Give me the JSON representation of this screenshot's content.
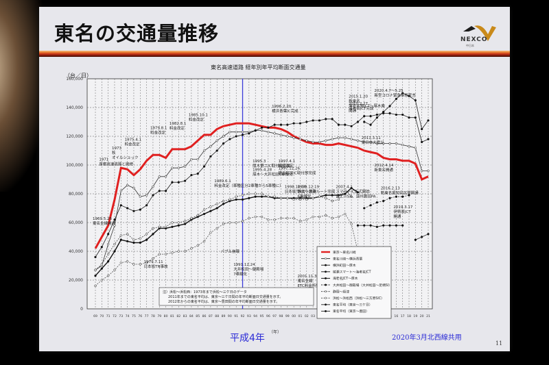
{
  "slide": {
    "title": "東名の交通量推移",
    "logo": {
      "brand": "NEXCO",
      "sub": "中日本"
    },
    "heisei_label": "平成4年",
    "credit": "2020年3月北西線共用",
    "page_number": "11",
    "year_unit": "（年）",
    "accent_color": "#e02020",
    "marker_color": "#3a3ad8"
  },
  "chart_data": {
    "type": "line",
    "title": "東名高速道路 経年別年平均断面交通量",
    "ylabel": "（台／日）",
    "xlabel": "（年）",
    "ylim": [
      0,
      160000
    ],
    "yticks": [
      "0",
      "20,000",
      "40,000",
      "60,000",
      "80,000",
      "100,000",
      "120,000",
      "140,000",
      "160,000"
    ],
    "x": [
      "69",
      "70",
      "71",
      "72",
      "73",
      "74",
      "75",
      "76",
      "77",
      "78",
      "79",
      "80",
      "81",
      "82",
      "83",
      "84",
      "85",
      "86",
      "87",
      "88",
      "89",
      "90",
      "91",
      "92",
      "93",
      "94",
      "95",
      "96",
      "97",
      "98",
      "99",
      "00",
      "01",
      "02",
      "03",
      "04",
      "05",
      "06",
      "07",
      "08",
      "09",
      "10",
      "11",
      "12",
      "13",
      "14",
      "15",
      "16",
      "17",
      "18",
      "19",
      "20",
      "21"
    ],
    "grid": true,
    "vertical_marker": {
      "x": "92",
      "label": "平成4年"
    },
    "legend_position": "inside-lower-right",
    "series": [
      {
        "name": "東京～東名川崎",
        "color": "#e02020",
        "values": [
          42000,
          50000,
          58000,
          76000,
          98000,
          97000,
          93000,
          97000,
          103000,
          107000,
          107000,
          105000,
          111000,
          111000,
          111000,
          113000,
          117000,
          121000,
          121000,
          125000,
          127000,
          128000,
          129000,
          129000,
          129000,
          128000,
          127000,
          126000,
          126000,
          125000,
          123000,
          120000,
          118000,
          116000,
          115000,
          115000,
          114000,
          114000,
          115000,
          114000,
          113000,
          112000,
          110000,
          109000,
          108000,
          105000,
          104000,
          104000,
          103000,
          103000,
          101000,
          90000,
          92000
        ]
      },
      {
        "name": "東名川崎～横浜青葉",
        "color": "#333333",
        "values": [
          27000,
          30000,
          45000,
          58000,
          82000,
          86000,
          84000,
          78000,
          79000,
          85000,
          92000,
          92000,
          98000,
          98000,
          99000,
          104000,
          104000,
          110000,
          113000,
          117000,
          120000,
          123000,
          123000,
          123000,
          123000,
          124000,
          124000,
          123000,
          122000,
          121000,
          120000,
          119000,
          118000,
          117000,
          116000,
          116000,
          117000,
          118000,
          119000,
          119000,
          118000,
          117000,
          116000,
          116000,
          115000,
          115000,
          115000,
          115000,
          114000,
          113000,
          112000,
          96000,
          96000
        ]
      },
      {
        "name": "横浜町田～厚木",
        "color": "#222222",
        "values": [
          36000,
          43000,
          52000,
          62000,
          72000,
          70000,
          68000,
          69000,
          72000,
          79000,
          82000,
          82000,
          88000,
          88000,
          89000,
          93000,
          94000,
          99000,
          106000,
          110000,
          115000,
          118000,
          120000,
          121000,
          122000,
          124000,
          126000,
          126000,
          128000,
          128000,
          128000,
          129000,
          129000,
          130000,
          131000,
          131000,
          132000,
          132000,
          128000,
          128000,
          127000,
          130000,
          134000,
          134000,
          135000,
          136000,
          136000,
          135000,
          135000,
          133000,
          133000,
          116000,
          118000
        ]
      },
      {
        "name": "綾瀬スマート～海老名JCT",
        "color": "#222222",
        "values": [
          null,
          null,
          null,
          null,
          null,
          null,
          null,
          null,
          null,
          null,
          null,
          null,
          null,
          null,
          null,
          null,
          null,
          null,
          null,
          null,
          null,
          null,
          null,
          null,
          null,
          null,
          null,
          null,
          null,
          null,
          null,
          null,
          null,
          null,
          null,
          null,
          null,
          null,
          null,
          null,
          null,
          null,
          130000,
          128000,
          133000,
          137000,
          141000,
          146000,
          150000,
          148000,
          145000,
          125000,
          131000
        ]
      },
      {
        "name": "海老名JCT～厚木",
        "color": "#111111",
        "values": [
          23000,
          28000,
          33000,
          40000,
          48000,
          47000,
          46000,
          46000,
          48000,
          52000,
          56000,
          56000,
          57000,
          58000,
          59000,
          62000,
          64000,
          66000,
          68000,
          70000,
          73000,
          75000,
          76000,
          76000,
          77000,
          78000,
          78000,
          78000,
          77000,
          77000,
          77000,
          77000,
          77000,
          77000,
          77000,
          78000,
          79000,
          79000,
          79000,
          80000,
          84000,
          81000,
          null,
          null,
          null,
          null,
          null,
          null,
          null,
          null,
          null,
          null,
          null
        ]
      },
      {
        "name": "大井松田～御殿場（大井松田～足柄SI）",
        "color": "#222222",
        "values": [
          null,
          null,
          null,
          null,
          null,
          null,
          null,
          null,
          null,
          null,
          null,
          null,
          null,
          null,
          null,
          null,
          null,
          null,
          null,
          null,
          null,
          null,
          null,
          null,
          null,
          null,
          null,
          null,
          null,
          null,
          null,
          null,
          null,
          null,
          null,
          null,
          null,
          null,
          null,
          null,
          null,
          null,
          70000,
          72000,
          74000,
          75000,
          77000,
          78000,
          78000,
          79000,
          null,
          null,
          null
        ]
      },
      {
        "name": "静岡～焼津",
        "color": "#444444",
        "values": [
          27000,
          31000,
          38000,
          45000,
          51000,
          52000,
          48000,
          49000,
          52000,
          56000,
          57000,
          57000,
          60000,
          60000,
          61000,
          63000,
          65000,
          69000,
          71000,
          73000,
          75000,
          76000,
          78000,
          79000,
          80000,
          80000,
          80000,
          78000,
          78000,
          77000,
          77000,
          76000,
          76000,
          76000,
          77000,
          78000,
          77000,
          75000,
          76000,
          83000,
          78000,
          null,
          null,
          null,
          null,
          null,
          null,
          null,
          null,
          null,
          null,
          null,
          null
        ]
      },
      {
        "name": "浜松～浜松西（浜松～三方原SIC）",
        "color": "#555555",
        "values": [
          16000,
          20000,
          23000,
          27000,
          32000,
          33000,
          31000,
          31000,
          32000,
          35000,
          38000,
          38000,
          39000,
          40000,
          40000,
          42000,
          44000,
          47000,
          53000,
          56000,
          59000,
          60000,
          60000,
          61000,
          63000,
          64000,
          64000,
          62000,
          62000,
          63000,
          63000,
          63000,
          61000,
          62000,
          64000,
          64000,
          65000,
          63000,
          64000,
          66000,
          59000,
          40000,
          null,
          null,
          null,
          null,
          null,
          null,
          null,
          null,
          null,
          null,
          null
        ]
      },
      {
        "name": "東名平均（東京～三ケ日）",
        "color": "#333333",
        "values": [
          null,
          null,
          null,
          null,
          null,
          null,
          null,
          null,
          null,
          null,
          null,
          null,
          null,
          null,
          null,
          null,
          null,
          null,
          null,
          null,
          null,
          null,
          null,
          null,
          null,
          null,
          null,
          null,
          null,
          null,
          null,
          null,
          null,
          null,
          null,
          null,
          null,
          null,
          null,
          null,
          null,
          58000,
          58000,
          58000,
          57000,
          58000,
          58000,
          58000,
          58000,
          null,
          null,
          null,
          null
        ]
      },
      {
        "name": "東名平均（東京～豊田）",
        "color": "#333333",
        "values": [
          null,
          null,
          null,
          null,
          null,
          null,
          null,
          null,
          null,
          null,
          null,
          null,
          null,
          null,
          null,
          null,
          null,
          null,
          null,
          null,
          null,
          null,
          null,
          null,
          null,
          null,
          null,
          null,
          null,
          null,
          null,
          null,
          null,
          null,
          null,
          null,
          null,
          null,
          null,
          null,
          null,
          null,
          null,
          null,
          null,
          null,
          null,
          null,
          null,
          null,
          48000,
          50000,
          52000
        ]
      }
    ],
    "annotations": [
      {
        "x": "69",
        "text": "1969.5.26 東名全線開通"
      },
      {
        "x": "71",
        "text": "1971 首都高速道路と接続"
      },
      {
        "x": "73",
        "text": "1973 秋 オイルショック"
      },
      {
        "x": "75",
        "text": "1975.4.1 料金改定"
      },
      {
        "x": "79",
        "text": "1979.7.11 日本坂TN事故"
      },
      {
        "x": "79",
        "text": "1979.8.1 料金改定"
      },
      {
        "x": "82",
        "text": "1982.8.1 料金改定"
      },
      {
        "x": "85",
        "text": "1985.10.1 料金改定"
      },
      {
        "x": "89",
        "text": "1989.6.1 料金改定（車種区分2車種から5車種に）"
      },
      {
        "x": "91",
        "text": "バブル崩壊"
      },
      {
        "x": "91",
        "text": "1991.12.24 大井松田～御殿場 7車線化"
      },
      {
        "x": "95",
        "text": "1995.3 厚木第二IC取付部完成"
      },
      {
        "x": "95",
        "text": "1995.4.28 厚木～大井松田6車線化"
      },
      {
        "x": "96",
        "text": "1996.2.20 横浜青葉IC完成"
      },
      {
        "x": "97",
        "text": "1997.4.1 料金改定"
      },
      {
        "x": "97",
        "text": "1997.12.26 横浜町田IC取付部完成"
      },
      {
        "x": "98",
        "text": "1998.10.10 日本坂TN上り左右ルート完成"
      },
      {
        "x": "99",
        "text": "1999.12.19 静岡～焼津 6車線化"
      },
      {
        "x": "01",
        "text": "2001.11.30 東名全線 ETC料金所整備"
      },
      {
        "x": "07",
        "text": "2007.4.1 スマートIC正式開始 富士川SA、遠州豊田PA"
      },
      {
        "x": "08",
        "text": "2008.3.28 東名全線 休日特別割引制度"
      },
      {
        "x": "10",
        "text": "2010.2.27 海老名JCT完成"
      },
      {
        "x": "11",
        "text": "2011.3.11 東日本大震災"
      },
      {
        "x": "12",
        "text": "2012.4.14 新東名開通"
      },
      {
        "x": "15",
        "text": "2015.1.20 新東名 海老名南JCT～厚木南 開通"
      },
      {
        "x": "16",
        "text": "2016.2.13 新東名愛知県区間開通"
      },
      {
        "x": "19",
        "text": "2019.3.17 伊勢原JCT 開通"
      },
      {
        "x": "20",
        "text": "2020.4.7～5.25 新型コロナ緊急事態宣言"
      }
    ],
    "note": [
      "注）浜松～浜松西：1973年まで浜松～三ケ日のデータ",
      "2011年までの東名平均は、東京～三ケ日間の年平均断面日交通量を示す。",
      "2012年からの東名平均は、東京～豊田間の年平均断面日交通量を示す。"
    ]
  }
}
